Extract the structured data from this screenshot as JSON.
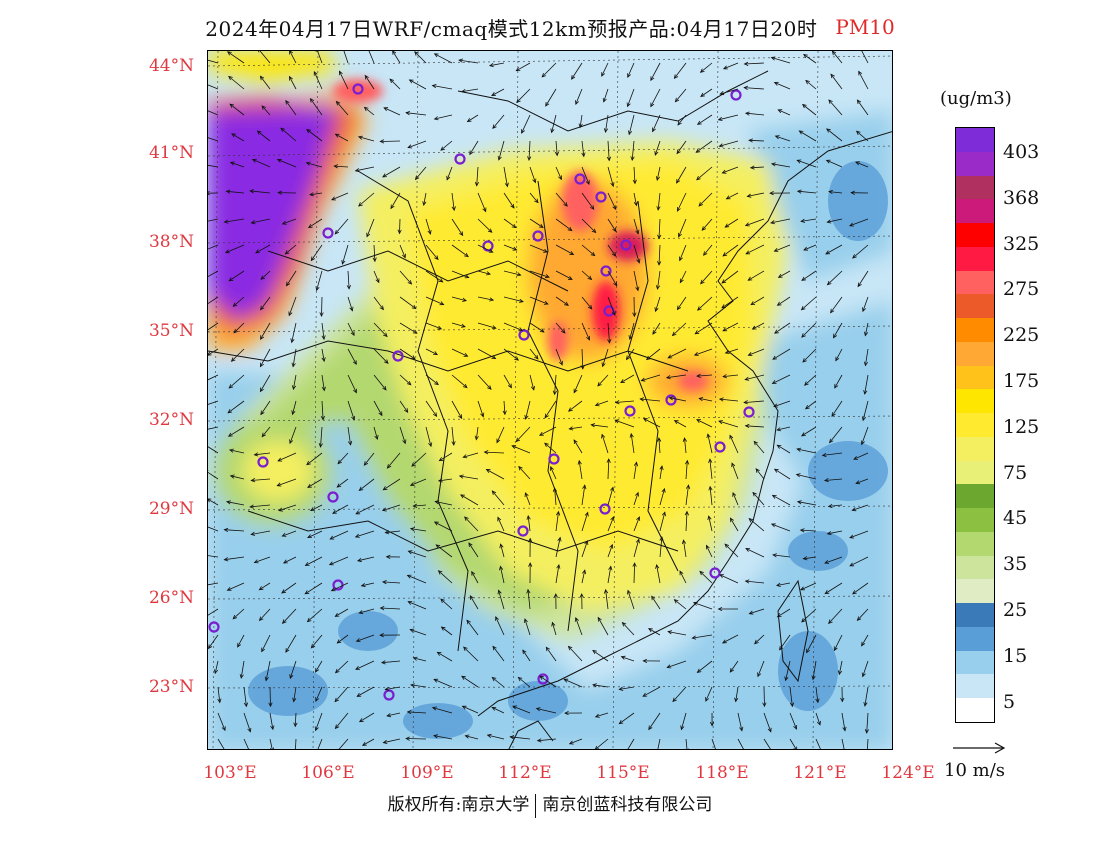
{
  "title": {
    "main": "2024年04月17日WRF/cmaq模式12km预报产品:04月17日20时",
    "pollutant": "PM10",
    "pollutant_color": "#e02a2a"
  },
  "axes": {
    "latitude_ticks": [
      "44°N",
      "41°N",
      "38°N",
      "35°N",
      "32°N",
      "29°N",
      "26°N",
      "23°N"
    ],
    "longitude_ticks": [
      "103°E",
      "106°E",
      "109°E",
      "112°E",
      "115°E",
      "118°E",
      "121°E",
      "124°E"
    ],
    "tick_color": "#e0383f"
  },
  "legend": {
    "unit": "(ug/m3)",
    "labels": [
      "403",
      "368",
      "325",
      "275",
      "225",
      "175",
      "125",
      "75",
      "45",
      "35",
      "25",
      "15",
      "5"
    ],
    "colors": [
      "#7e2bd8",
      "#9a2bc8",
      "#b03060",
      "#cc1a7a",
      "#ff0000",
      "#ff1a44",
      "#ff6060",
      "#ec5a2a",
      "#ff8c00",
      "#ffa833",
      "#ffc21a",
      "#ffe600",
      "#ffea30",
      "#f4ef60",
      "#e8f078",
      "#6ca830",
      "#8cc040",
      "#b4d870",
      "#cde49c",
      "#e0ecc4",
      "#3a7ab8",
      "#5a9ed8",
      "#98cfec",
      "#c8e6f6",
      "#ffffff"
    ]
  },
  "wind_scale": {
    "label": "10 m/s"
  },
  "footer": {
    "copyright_left": "版权所有:南京大学",
    "copyright_right": "南京创蓝科技有限公司"
  },
  "stations": {
    "marker_color": "#7a1fd0",
    "count": 27
  }
}
